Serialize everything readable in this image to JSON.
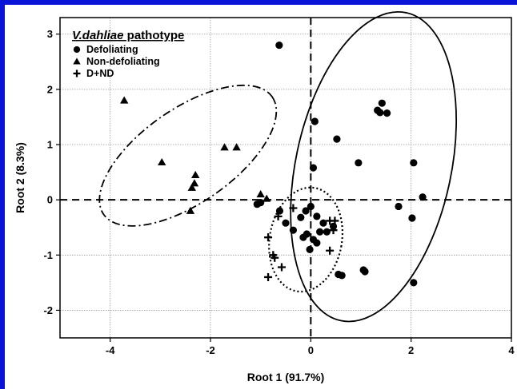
{
  "chart_data": {
    "type": "scatter",
    "xlabel": "Root 1 (91.7%)",
    "ylabel": "Root 2 (8.3%)",
    "xlim": [
      -5,
      4
    ],
    "ylim": [
      -2.5,
      3.3
    ],
    "xticks": [
      -4,
      -2,
      0,
      2,
      4
    ],
    "yticks": [
      -2,
      -1,
      0,
      1,
      2,
      3
    ],
    "xtick_labels": [
      "-4",
      "-2",
      "0",
      "2",
      "4"
    ],
    "ytick_labels": [
      "-2",
      "-1",
      "0",
      "1",
      "2",
      "3"
    ],
    "grid": true,
    "legend_position": "top-left",
    "legend": {
      "title_italic": "V.dahliae",
      "title_rest": " pathotype",
      "entries": [
        "Defoliating",
        "Non-defoliating",
        "D+ND"
      ]
    },
    "reference_lines": {
      "x": 0,
      "y": 0,
      "style": "dashed"
    },
    "series": [
      {
        "name": "Defoliating",
        "marker": "circle",
        "color": "#000000",
        "points": [
          [
            -0.63,
            2.8
          ],
          [
            0.08,
            1.42
          ],
          [
            0.05,
            0.58
          ],
          [
            0.52,
            1.1
          ],
          [
            0.95,
            0.67
          ],
          [
            1.33,
            1.62
          ],
          [
            1.38,
            1.58
          ],
          [
            1.42,
            1.75
          ],
          [
            1.52,
            1.57
          ],
          [
            2.05,
            0.67
          ],
          [
            2.02,
            -0.33
          ],
          [
            2.23,
            0.05
          ],
          [
            1.75,
            -0.12
          ],
          [
            2.05,
            -1.5
          ],
          [
            1.05,
            -1.27
          ],
          [
            1.08,
            -1.3
          ],
          [
            0.55,
            -1.35
          ],
          [
            0.62,
            -1.37
          ],
          [
            -1.07,
            -0.08
          ],
          [
            -1.0,
            -0.05
          ],
          [
            -0.62,
            -0.2
          ],
          [
            -0.5,
            -0.42
          ],
          [
            -0.2,
            -0.32
          ],
          [
            -0.1,
            -0.2
          ],
          [
            0.0,
            -0.12
          ],
          [
            0.12,
            -0.3
          ],
          [
            0.25,
            -0.42
          ],
          [
            0.32,
            -0.58
          ],
          [
            0.45,
            -0.48
          ],
          [
            0.18,
            -0.58
          ],
          [
            -0.08,
            -0.62
          ],
          [
            -0.15,
            -0.68
          ],
          [
            0.05,
            -0.72
          ],
          [
            -0.02,
            -0.9
          ],
          [
            0.12,
            -0.78
          ],
          [
            -0.35,
            -0.55
          ]
        ]
      },
      {
        "name": "Non-defoliating",
        "marker": "triangle",
        "color": "#000000",
        "points": [
          [
            -3.72,
            1.8
          ],
          [
            -2.97,
            0.68
          ],
          [
            -1.72,
            0.95
          ],
          [
            -1.48,
            0.95
          ],
          [
            -2.3,
            0.45
          ],
          [
            -2.32,
            0.3
          ],
          [
            -2.37,
            0.22
          ],
          [
            -2.4,
            -0.2
          ],
          [
            -1.0,
            0.1
          ],
          [
            -0.88,
            0.02
          ]
        ]
      },
      {
        "name": "D+ND",
        "marker": "plus",
        "color": "#000000",
        "points": [
          [
            -0.35,
            -0.15
          ],
          [
            -0.65,
            -0.3
          ],
          [
            -0.85,
            -0.68
          ],
          [
            -0.75,
            -1.0
          ],
          [
            -0.72,
            -1.05
          ],
          [
            -0.58,
            -1.22
          ],
          [
            -0.85,
            -1.4
          ],
          [
            0.38,
            -0.38
          ],
          [
            0.45,
            -0.55
          ],
          [
            0.48,
            -0.38
          ],
          [
            0.38,
            -0.92
          ]
        ]
      }
    ],
    "ellipses": [
      {
        "group": "Defoliating",
        "style": "solid",
        "center": [
          1.25,
          0.6
        ],
        "rx": 1.55,
        "ry": 2.85,
        "angle": 12
      },
      {
        "group": "Non-defoliating",
        "style": "dashdot",
        "center": [
          -2.45,
          0.8
        ],
        "rx": 2.05,
        "ry": 0.85,
        "angle": -35
      },
      {
        "group": "D+ND",
        "style": "dotted",
        "center": [
          -0.1,
          -0.72
        ],
        "rx": 0.72,
        "ry": 0.95,
        "angle": 10
      }
    ]
  }
}
